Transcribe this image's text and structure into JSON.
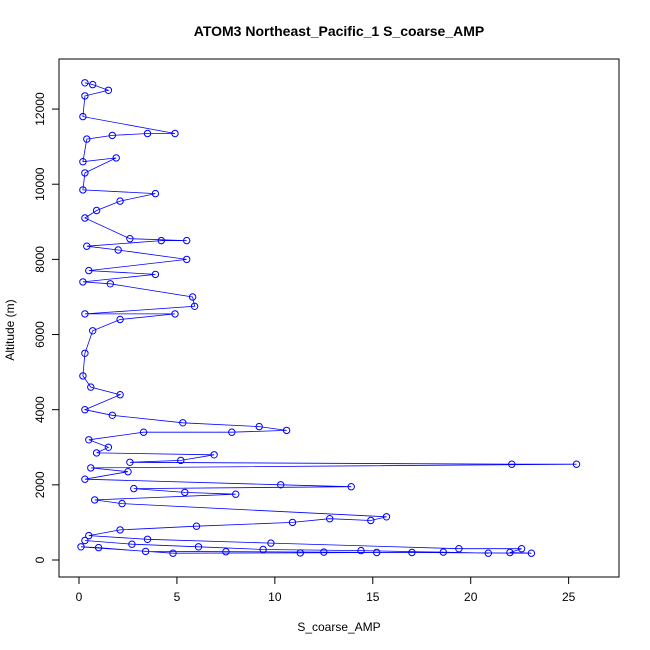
{
  "chart_data": {
    "type": "scatter",
    "title": "ATOM3 Northeast_Pacific_1 S_coarse_AMP",
    "xlabel": "S_coarse_AMP",
    "ylabel": "Altitude (m)",
    "xlim": [
      0,
      26.5
    ],
    "ylim": [
      0,
      12800
    ],
    "x_ticks": [
      0,
      5,
      10,
      15,
      20,
      25
    ],
    "y_ticks": [
      0,
      2000,
      4000,
      6000,
      8000,
      10000,
      12000
    ],
    "grid": false,
    "legend": "none",
    "series_color": "#0000ff",
    "marker": "open-circle",
    "connected": true,
    "points": [
      [
        0.3,
        12700
      ],
      [
        0.7,
        12650
      ],
      [
        1.5,
        12500
      ],
      [
        0.3,
        12350
      ],
      [
        0.2,
        11800
      ],
      [
        4.9,
        11350
      ],
      [
        3.5,
        11350
      ],
      [
        1.7,
        11300
      ],
      [
        0.4,
        11200
      ],
      [
        0.2,
        10600
      ],
      [
        1.9,
        10700
      ],
      [
        0.3,
        10300
      ],
      [
        0.2,
        9850
      ],
      [
        3.9,
        9750
      ],
      [
        2.1,
        9550
      ],
      [
        0.9,
        9300
      ],
      [
        0.3,
        9100
      ],
      [
        2.6,
        8550
      ],
      [
        5.5,
        8500
      ],
      [
        4.2,
        8500
      ],
      [
        0.4,
        8350
      ],
      [
        2.0,
        8250
      ],
      [
        5.5,
        8000
      ],
      [
        0.5,
        7700
      ],
      [
        3.9,
        7600
      ],
      [
        0.2,
        7400
      ],
      [
        1.6,
        7350
      ],
      [
        5.8,
        7000
      ],
      [
        5.9,
        6750
      ],
      [
        0.3,
        6550
      ],
      [
        4.9,
        6550
      ],
      [
        2.1,
        6400
      ],
      [
        0.7,
        6100
      ],
      [
        0.3,
        5500
      ],
      [
        0.2,
        4900
      ],
      [
        0.6,
        4600
      ],
      [
        2.1,
        4400
      ],
      [
        0.3,
        4000
      ],
      [
        1.7,
        3850
      ],
      [
        5.3,
        3650
      ],
      [
        9.2,
        3550
      ],
      [
        10.6,
        3450
      ],
      [
        7.8,
        3400
      ],
      [
        3.3,
        3400
      ],
      [
        0.5,
        3200
      ],
      [
        1.5,
        3000
      ],
      [
        0.9,
        2850
      ],
      [
        6.9,
        2800
      ],
      [
        5.2,
        2650
      ],
      [
        2.6,
        2600
      ],
      [
        22.1,
        2550
      ],
      [
        25.4,
        2550
      ],
      [
        0.6,
        2450
      ],
      [
        2.5,
        2350
      ],
      [
        0.3,
        2150
      ],
      [
        10.3,
        2000
      ],
      [
        13.9,
        1950
      ],
      [
        2.8,
        1900
      ],
      [
        5.4,
        1800
      ],
      [
        8.0,
        1750
      ],
      [
        0.8,
        1600
      ],
      [
        2.2,
        1500
      ],
      [
        15.7,
        1150
      ],
      [
        14.9,
        1050
      ],
      [
        12.8,
        1100
      ],
      [
        10.9,
        1000
      ],
      [
        6.0,
        900
      ],
      [
        2.1,
        800
      ],
      [
        0.5,
        650
      ],
      [
        3.5,
        550
      ],
      [
        9.8,
        450
      ],
      [
        19.4,
        300
      ],
      [
        22.6,
        300
      ],
      [
        22.0,
        200
      ],
      [
        23.1,
        180
      ],
      [
        17.0,
        200
      ],
      [
        12.5,
        210
      ],
      [
        7.5,
        220
      ],
      [
        3.4,
        230
      ],
      [
        1.0,
        330
      ],
      [
        0.1,
        350
      ],
      [
        4.8,
        180
      ],
      [
        11.3,
        190
      ],
      [
        15.2,
        200
      ],
      [
        18.6,
        210
      ],
      [
        20.9,
        180
      ],
      [
        14.4,
        250
      ],
      [
        9.4,
        280
      ],
      [
        6.1,
        350
      ],
      [
        2.7,
        420
      ],
      [
        0.3,
        520
      ]
    ]
  }
}
